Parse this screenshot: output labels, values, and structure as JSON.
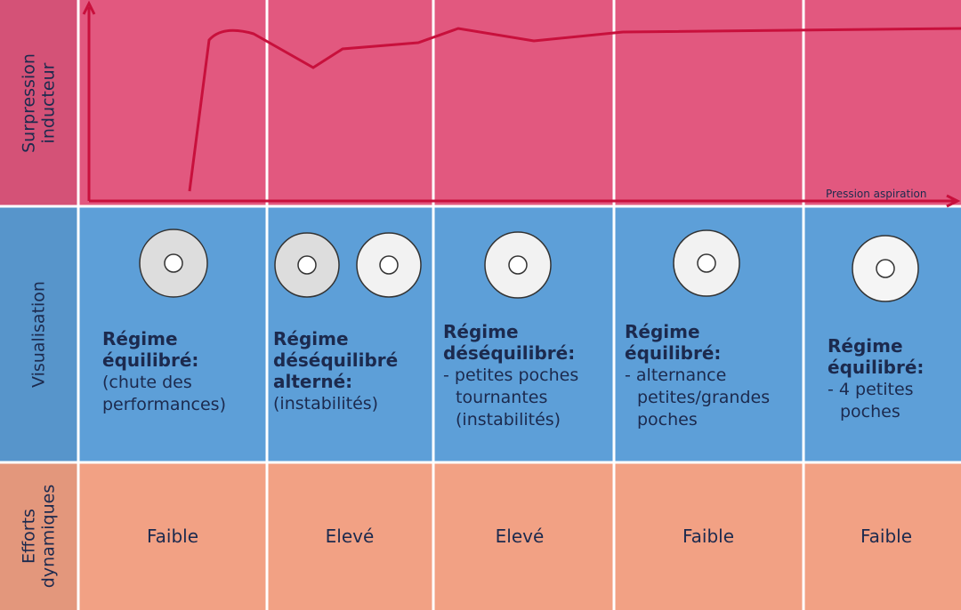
{
  "row_labels": [
    [
      "Surpression",
      "inducteur"
    ],
    [
      "Visualisation"
    ],
    [
      "Efforts",
      "dynamiques"
    ]
  ],
  "chart": {
    "x_label": "Pression aspiration"
  },
  "columns": [
    {
      "title": [
        "Régime",
        "équilibré:"
      ],
      "description": [
        "(chute des",
        "performances)"
      ],
      "efforts": "Faible"
    },
    {
      "title": [
        "Régime",
        "déséquilibré",
        "alterné:"
      ],
      "description": [
        "(instabilités)"
      ],
      "efforts": "Elevé"
    },
    {
      "title": [
        "Régime",
        "déséquilibré:"
      ],
      "description": [
        "- petites poches",
        "tournantes",
        "(instabilités)"
      ],
      "efforts": "Elevé"
    },
    {
      "title": [
        "Régime",
        "équilibré:"
      ],
      "description": [
        "- alternance",
        "petites/grandes",
        "poches"
      ],
      "efforts": "Faible"
    },
    {
      "title": [
        "Régime",
        "équilibré:"
      ],
      "description": [
        "- 4 petites",
        "poches"
      ],
      "efforts": "Faible"
    }
  ]
}
